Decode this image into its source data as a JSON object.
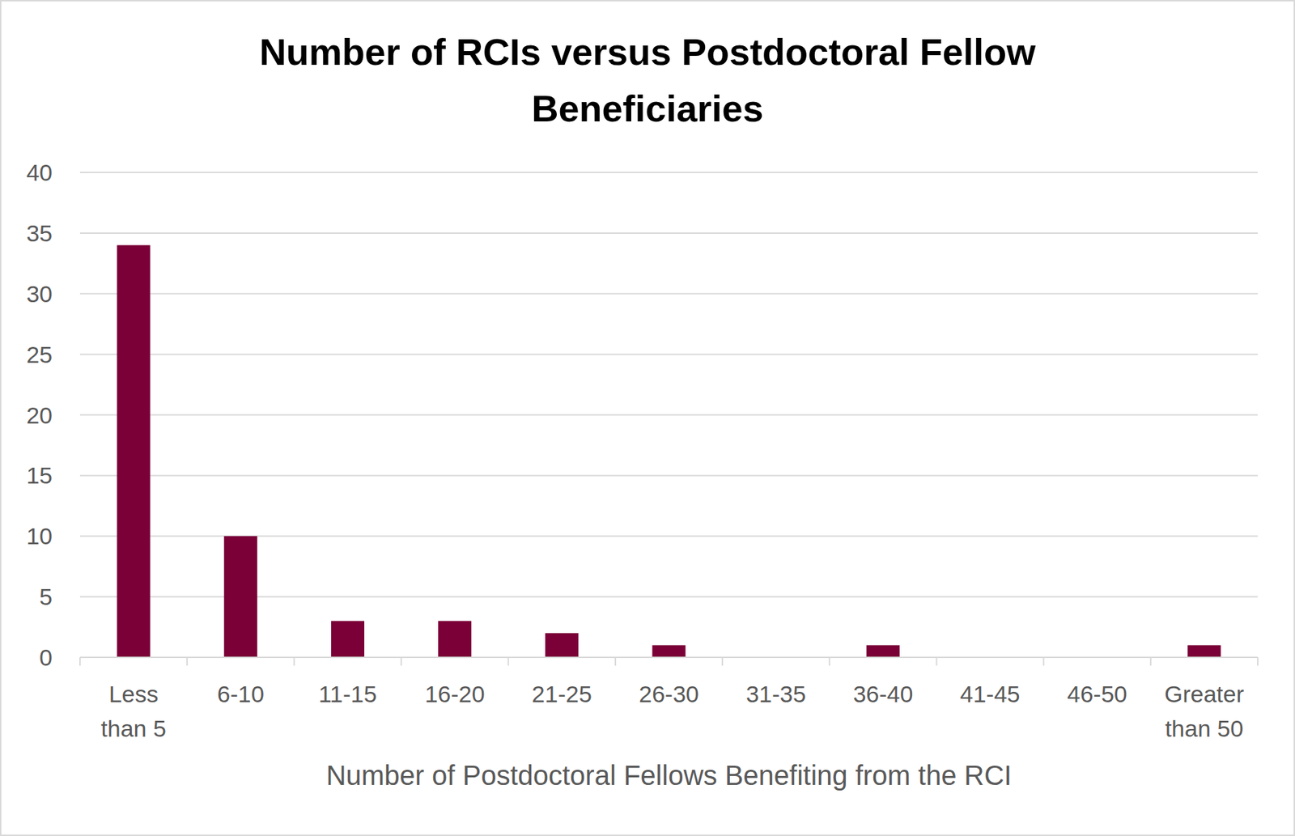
{
  "chart_data": {
    "type": "bar",
    "title": "Number of RCIs versus Postdoctoral Fellow Beneficiaries",
    "x_label": "Number of Postdoctoral Fellows Benefiting from the RCI",
    "categories": [
      "Less than 5",
      "6-10",
      "11-15",
      "16-20",
      "21-25",
      "26-30",
      "31-35",
      "36-40",
      "41-45",
      "46-50",
      "Greater than 50"
    ],
    "values": [
      34,
      10,
      3,
      3,
      2,
      1,
      0,
      1,
      0,
      0,
      1
    ],
    "color": "#7a0037",
    "ylim": [
      0,
      40
    ],
    "yticks": [
      0,
      5,
      10,
      15,
      20,
      25,
      30,
      35,
      40
    ],
    "grid": true
  }
}
